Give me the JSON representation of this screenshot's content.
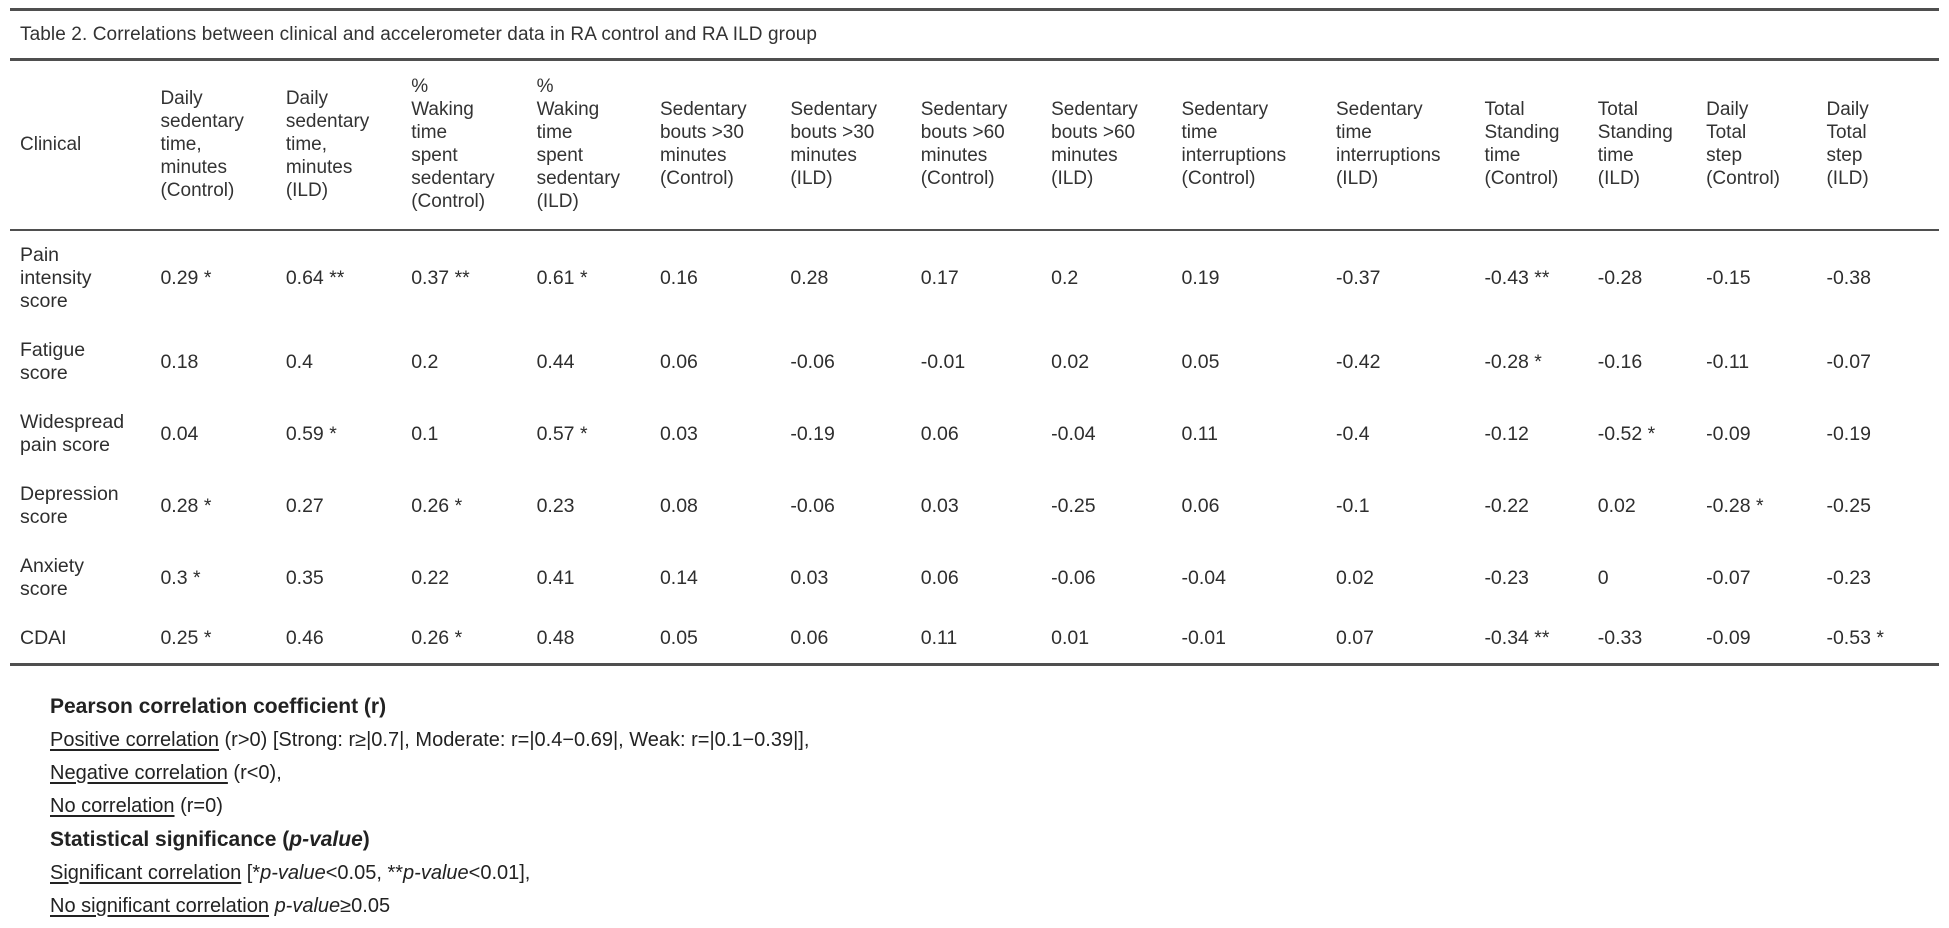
{
  "table": {
    "title": "Table 2. Correlations between clinical and accelerometer data in RA control and RA ILD group",
    "columns": [
      "Clinical",
      "Daily\nsedentary\ntime,\nminutes\n(Control)",
      "Daily\nsedentary\ntime,\nminutes\n(ILD)",
      "%\nWaking\ntime\nspent\nsedentary\n(Control)",
      "%\nWaking\ntime\nspent\nsedentary\n(ILD)",
      "Sedentary\nbouts >30\nminutes\n(Control)",
      "Sedentary\nbouts >30\nminutes\n(ILD)",
      "Sedentary\nbouts >60\nminutes\n(Control)",
      "Sedentary\nbouts >60\nminutes\n(ILD)",
      "Sedentary\ntime\ninterruptions\n(Control)",
      "Sedentary\ntime\ninterruptions\n(ILD)",
      "Total\nStanding\ntime\n(Control)",
      "Total\nStanding\ntime\n(ILD)",
      "Daily\nTotal\nstep\n(Control)",
      "Daily\nTotal\nstep\n(ILD)"
    ],
    "rows": [
      {
        "label": "Pain\nintensity\nscore",
        "values": [
          "0.29 *",
          "0.64 **",
          "0.37 **",
          "0.61 *",
          "0.16",
          "0.28",
          "0.17",
          "0.2",
          "0.19",
          "-0.37",
          "-0.43 **",
          "-0.28",
          "-0.15",
          "-0.38"
        ]
      },
      {
        "label": "Fatigue\nscore",
        "values": [
          "0.18",
          "0.4",
          "0.2",
          "0.44",
          "0.06",
          "-0.06",
          "-0.01",
          "0.02",
          "0.05",
          "-0.42",
          "-0.28 *",
          "-0.16",
          "-0.11",
          "-0.07"
        ]
      },
      {
        "label": "Widespread\npain score",
        "values": [
          "0.04",
          "0.59 *",
          "0.1",
          "0.57 *",
          "0.03",
          "-0.19",
          "0.06",
          "-0.04",
          "0.11",
          "-0.4",
          "-0.12",
          "-0.52 *",
          "-0.09",
          "-0.19"
        ]
      },
      {
        "label": "Depression\nscore",
        "values": [
          "0.28 *",
          "0.27",
          "0.26 *",
          "0.23",
          "0.08",
          "-0.06",
          "0.03",
          "-0.25",
          "0.06",
          "-0.1",
          "-0.22",
          "0.02",
          "-0.28 *",
          "-0.25"
        ]
      },
      {
        "label": "Anxiety\nscore",
        "values": [
          "0.3 *",
          "0.35",
          "0.22",
          "0.41",
          "0.14",
          "0.03",
          "0.06",
          "-0.06",
          "-0.04",
          "0.02",
          "-0.23",
          "0",
          "-0.07",
          "-0.23"
        ]
      },
      {
        "label": "CDAI",
        "values": [
          "0.25 *",
          "0.46",
          "0.26 *",
          "0.48",
          "0.05",
          "0.06",
          "0.11",
          "0.01",
          "-0.01",
          "0.07",
          "-0.34 **",
          "-0.33",
          "-0.09",
          "-0.53 *"
        ]
      }
    ]
  },
  "notes": {
    "lines": [
      {
        "segments": [
          {
            "text": "Pearson correlation coefficient (r)",
            "style": "bold"
          }
        ]
      },
      {
        "segments": [
          {
            "text": "Positive correlation",
            "style": "underline"
          },
          {
            "text": " (r>0) [Strong: r≥|0.7|, Moderate: r=|0.4−0.69|, Weak: r=|0.1−0.39|],",
            "style": "normal"
          }
        ]
      },
      {
        "segments": [
          {
            "text": "Negative correlation",
            "style": "underline"
          },
          {
            "text": " (r<0),",
            "style": "normal"
          }
        ]
      },
      {
        "segments": [
          {
            "text": "No correlation",
            "style": "underline"
          },
          {
            "text": " (r=0)",
            "style": "normal"
          }
        ]
      },
      {
        "segments": [
          {
            "text": "Statistical significance (",
            "style": "bold"
          },
          {
            "text": "p-value",
            "style": "bold-italic"
          },
          {
            "text": ")",
            "style": "bold"
          }
        ]
      },
      {
        "segments": [
          {
            "text": "Significant correlation",
            "style": "underline"
          },
          {
            "text": " [*",
            "style": "normal"
          },
          {
            "text": "p-value",
            "style": "italic"
          },
          {
            "text": "<0.05, **",
            "style": "normal"
          },
          {
            "text": "p-value",
            "style": "italic"
          },
          {
            "text": "<0.01],",
            "style": "normal"
          }
        ]
      },
      {
        "segments": [
          {
            "text": "No significant correlation",
            "style": "underline"
          },
          {
            "text": " ",
            "style": "normal"
          },
          {
            "text": "p-value",
            "style": "italic"
          },
          {
            "text": "≥0.05",
            "style": "normal"
          }
        ]
      }
    ]
  },
  "colors": {
    "rule": "#4f4f4f",
    "text": "#2e2e2e",
    "background": "#ffffff"
  }
}
